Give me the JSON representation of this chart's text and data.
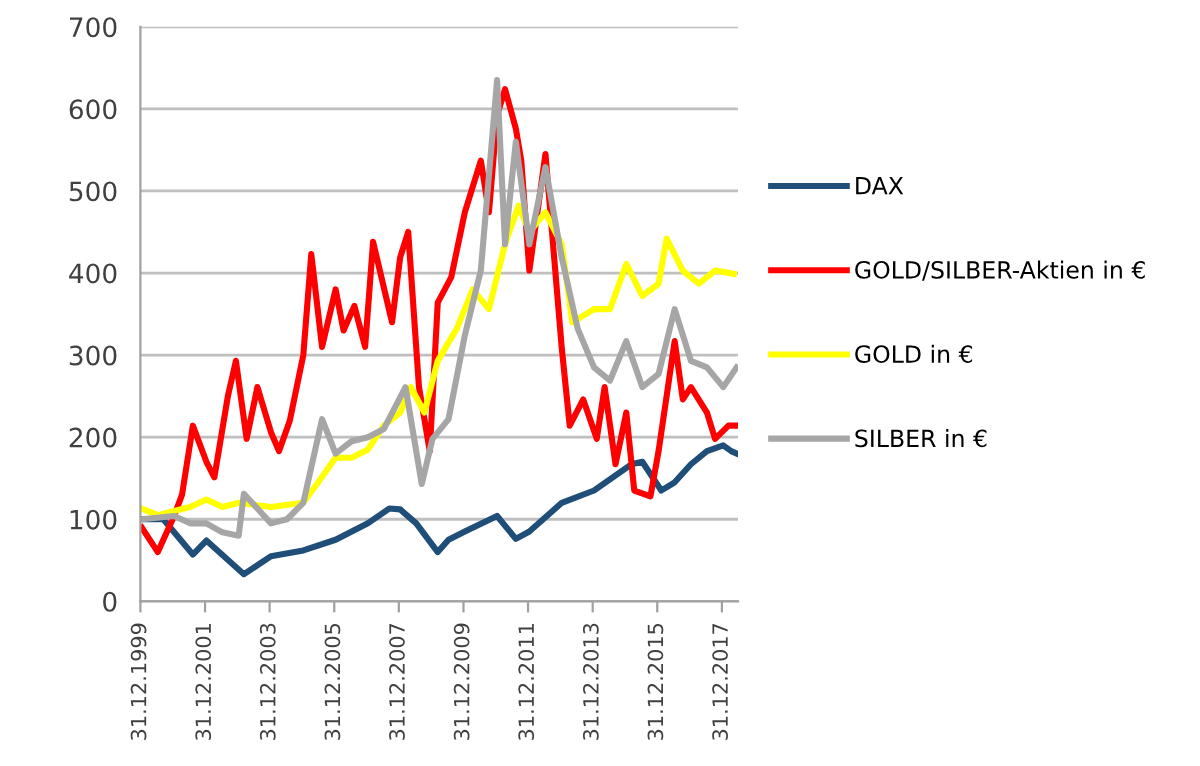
{
  "chart_data": {
    "type": "line",
    "xlim": [
      "1999-12-31",
      "2018-07-01"
    ],
    "xticks": [
      {
        "value": "1999-12-31",
        "label": "31.12.1999"
      },
      {
        "value": "2001-12-31",
        "label": "31.12.2001"
      },
      {
        "value": "2003-12-31",
        "label": "31.12.2003"
      },
      {
        "value": "2005-12-31",
        "label": "31.12.2005"
      },
      {
        "value": "2007-12-31",
        "label": "31.12.2007"
      },
      {
        "value": "2009-12-31",
        "label": "31.12.2009"
      },
      {
        "value": "2011-12-31",
        "label": "31.12.2011"
      },
      {
        "value": "2013-12-31",
        "label": "31.12.2013"
      },
      {
        "value": "2015-12-31",
        "label": "31.12.2015"
      },
      {
        "value": "2017-12-31",
        "label": "31.12.2017"
      }
    ],
    "ylim": [
      0,
      700
    ],
    "yticks": [
      0,
      100,
      200,
      300,
      400,
      500,
      600,
      700
    ],
    "grid": "y",
    "legend": "right",
    "marker": "none",
    "line_style": "solid",
    "series": [
      {
        "name": "DAX",
        "color": "#1f4e79",
        "x": [
          "2000-01",
          "2000-09",
          "2001-08",
          "2002-01",
          "2003-03",
          "2004-01",
          "2005-01",
          "2006-01",
          "2007-01",
          "2007-09",
          "2008-01",
          "2008-07",
          "2009-03",
          "2009-07",
          "2010-01",
          "2011-01",
          "2011-08",
          "2012-01",
          "2013-01",
          "2014-01",
          "2015-03",
          "2015-07",
          "2016-02",
          "2016-07",
          "2017-01",
          "2017-07",
          "2018-01",
          "2018-04",
          "2018-06"
        ],
        "values": [
          100,
          100,
          57,
          74,
          33,
          55,
          62,
          75,
          95,
          113,
          112,
          95,
          60,
          75,
          85,
          104,
          76,
          85,
          120,
          135,
          167,
          170,
          135,
          145,
          167,
          183,
          190,
          183,
          180
        ]
      },
      {
        "name": "GOLD/SILBER-Aktien in €",
        "color": "#ff0000",
        "x": [
          "2000-01",
          "2000-07",
          "2001-01",
          "2001-04",
          "2001-08",
          "2002-01",
          "2002-04",
          "2002-09",
          "2002-12",
          "2003-04",
          "2003-08",
          "2004-01",
          "2004-04",
          "2004-08",
          "2005-01",
          "2005-04",
          "2005-08",
          "2006-01",
          "2006-04",
          "2006-08",
          "2006-12",
          "2007-03",
          "2007-10",
          "2008-01",
          "2008-04",
          "2008-08",
          "2008-12",
          "2009-03",
          "2009-08",
          "2010-01",
          "2010-07",
          "2010-10",
          "2011-01",
          "2011-04",
          "2011-08",
          "2011-10",
          "2012-01",
          "2012-07",
          "2013-01",
          "2013-04",
          "2013-09",
          "2014-02",
          "2014-05",
          "2014-09",
          "2015-01",
          "2015-04",
          "2015-10",
          "2016-01",
          "2016-07",
          "2016-10",
          "2017-01",
          "2017-07",
          "2017-10",
          "2018-03",
          "2018-06"
        ],
        "values": [
          90,
          60,
          104,
          130,
          214,
          170,
          151,
          250,
          293,
          198,
          261,
          206,
          183,
          220,
          300,
          423,
          310,
          380,
          330,
          360,
          310,
          438,
          340,
          419,
          450,
          261,
          183,
          364,
          395,
          474,
          537,
          474,
          592,
          624,
          576,
          537,
          403,
          545,
          309,
          214,
          246,
          198,
          261,
          167,
          230,
          135,
          128,
          183,
          317,
          246,
          261,
          230,
          198,
          214,
          214
        ]
      },
      {
        "name": "GOLD in €",
        "color": "#ffff00",
        "x": [
          "2000-01",
          "2000-07",
          "2001-01",
          "2001-07",
          "2002-01",
          "2002-07",
          "2003-01",
          "2004-01",
          "2005-01",
          "2005-07",
          "2006-01",
          "2006-07",
          "2007-01",
          "2007-07",
          "2008-01",
          "2008-05",
          "2008-10",
          "2009-03",
          "2009-10",
          "2010-04",
          "2010-10",
          "2011-04",
          "2011-09",
          "2012-01",
          "2012-07",
          "2013-01",
          "2013-05",
          "2014-01",
          "2014-07",
          "2015-01",
          "2015-07",
          "2016-01",
          "2016-04",
          "2016-10",
          "2017-04",
          "2017-10",
          "2018-05"
        ],
        "values": [
          113,
          105,
          110,
          115,
          124,
          115,
          120,
          115,
          120,
          147,
          175,
          175,
          185,
          214,
          230,
          261,
          230,
          293,
          332,
          380,
          356,
          435,
          482,
          450,
          474,
          435,
          340,
          356,
          356,
          411,
          372,
          387,
          442,
          403,
          387,
          403,
          399
        ]
      },
      {
        "name": "SILBER in €",
        "color": "#a6a6a6",
        "x": [
          "2000-01",
          "2001-01",
          "2001-07",
          "2002-01",
          "2002-07",
          "2003-01",
          "2003-03",
          "2004-01",
          "2004-07",
          "2005-01",
          "2005-08",
          "2006-01",
          "2006-07",
          "2007-01",
          "2007-07",
          "2008-03",
          "2008-09",
          "2009-01",
          "2009-07",
          "2010-01",
          "2010-07",
          "2011-01",
          "2011-04",
          "2011-08",
          "2012-01",
          "2012-07",
          "2013-01",
          "2013-07",
          "2014-01",
          "2014-07",
          "2015-01",
          "2015-07",
          "2016-01",
          "2016-07",
          "2017-01",
          "2017-07",
          "2018-01",
          "2018-06"
        ],
        "values": [
          100,
          104,
          95,
          95,
          84,
          80,
          131,
          95,
          100,
          120,
          222,
          180,
          195,
          200,
          210,
          261,
          143,
          198,
          222,
          324,
          403,
          635,
          435,
          560,
          435,
          529,
          419,
          332,
          285,
          269,
          317,
          261,
          277,
          356,
          293,
          285,
          261,
          285
        ]
      }
    ]
  }
}
